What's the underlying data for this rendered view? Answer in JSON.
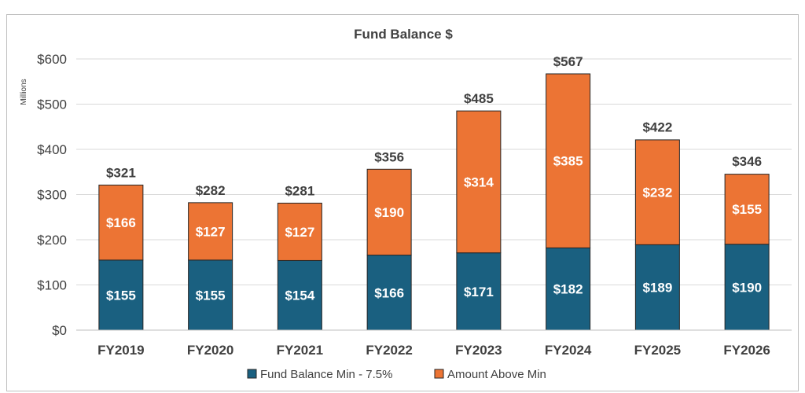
{
  "chart_data": {
    "type": "bar",
    "stacked": true,
    "title": "Fund Balance $",
    "ylabel": "Millions",
    "ylim": [
      0,
      600
    ],
    "ytick_step": 100,
    "ytick_labels": [
      "$0",
      "$100",
      "$200",
      "$300",
      "$400",
      "$500",
      "$600"
    ],
    "categories": [
      "FY2019",
      "FY2020",
      "FY2021",
      "FY2022",
      "FY2023",
      "FY2024",
      "FY2025",
      "FY2026"
    ],
    "series": [
      {
        "name": "Fund Balance Min - 7.5%",
        "color": "#1a6080",
        "values": [
          155,
          155,
          154,
          166,
          171,
          182,
          189,
          190
        ],
        "labels": [
          "$155",
          "$155",
          "$154",
          "$166",
          "$171",
          "$182",
          "$189",
          "$190"
        ]
      },
      {
        "name": "Amount Above Min",
        "color": "#ec7434",
        "values": [
          166,
          127,
          127,
          190,
          314,
          385,
          232,
          155
        ],
        "labels": [
          "$166",
          "$127",
          "$127",
          "$190",
          "$314",
          "$385",
          "$232",
          "$155"
        ]
      }
    ],
    "totals": [
      321,
      282,
      281,
      356,
      485,
      567,
      422,
      346
    ],
    "total_labels": [
      "$321",
      "$282",
      "$281",
      "$356",
      "$485",
      "$567",
      "$422",
      "$346"
    ],
    "legend_position": "bottom",
    "grid": true
  }
}
